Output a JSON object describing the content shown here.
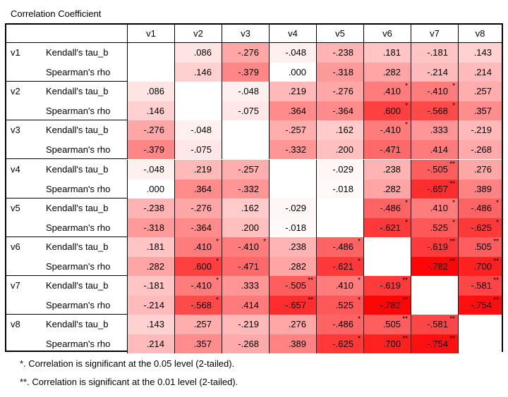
{
  "title": "Correlation Coefficient",
  "columns": [
    "v1",
    "v2",
    "v3",
    "v4",
    "v5",
    "v6",
    "v7",
    "v8"
  ],
  "rows": [
    {
      "var": "v1",
      "kendall": [
        "",
        ".086",
        "-.276",
        "-.048",
        "-.238",
        ".181",
        "-.181",
        ".143"
      ],
      "spearman": [
        "",
        ".146",
        "-.379",
        ".000",
        "-.318",
        ".282",
        "-.214",
        ".214"
      ],
      "ksig": [
        "",
        "",
        "",
        "",
        "",
        "",
        "",
        ""
      ],
      "ssig": [
        "",
        "",
        "",
        "",
        "",
        "",
        "",
        ""
      ]
    },
    {
      "var": "v2",
      "kendall": [
        ".086",
        "",
        "-.048",
        ".219",
        "-.276",
        ".410",
        "-.410",
        ".257"
      ],
      "spearman": [
        ".146",
        "",
        "-.075",
        ".364",
        "-.364",
        ".600",
        "-.568",
        ".357"
      ],
      "ksig": [
        "",
        "",
        "",
        "",
        "",
        "*",
        "*",
        ""
      ],
      "ssig": [
        "",
        "",
        "",
        "",
        "",
        "*",
        "*",
        ""
      ]
    },
    {
      "var": "v3",
      "kendall": [
        "-.276",
        "-.048",
        "",
        "-.257",
        ".162",
        "-.410",
        ".333",
        "-.219"
      ],
      "spearman": [
        "-.379",
        "-.075",
        "",
        "-.332",
        ".200",
        "-.471",
        ".414",
        "-.268"
      ],
      "ksig": [
        "",
        "",
        "",
        "",
        "",
        "*",
        "",
        ""
      ],
      "ssig": [
        "",
        "",
        "",
        "",
        "",
        "",
        "",
        ""
      ]
    },
    {
      "var": "v4",
      "kendall": [
        "-.048",
        ".219",
        "-.257",
        "",
        "-.029",
        ".238",
        "-.505",
        ".276"
      ],
      "spearman": [
        ".000",
        ".364",
        "-.332",
        "",
        "-.018",
        ".282",
        "-.657",
        ".389"
      ],
      "ksig": [
        "",
        "",
        "",
        "",
        "",
        "",
        "**",
        ""
      ],
      "ssig": [
        "",
        "",
        "",
        "",
        "",
        "",
        "**",
        ""
      ]
    },
    {
      "var": "v5",
      "kendall": [
        "-.238",
        "-.276",
        ".162",
        "-.029",
        "",
        "-.486",
        ".410",
        "-.486"
      ],
      "spearman": [
        "-.318",
        "-.364",
        ".200",
        "-.018",
        "",
        "-.621",
        ".525",
        "-.625"
      ],
      "ksig": [
        "",
        "",
        "",
        "",
        "",
        "*",
        "*",
        "*"
      ],
      "ssig": [
        "",
        "",
        "",
        "",
        "",
        "*",
        "*",
        "*"
      ]
    },
    {
      "var": "v6",
      "kendall": [
        ".181",
        ".410",
        "-.410",
        ".238",
        "-.486",
        "",
        "-.619",
        ".505"
      ],
      "spearman": [
        ".282",
        ".600",
        "-.471",
        ".282",
        "-.621",
        "",
        "-.782",
        ".700"
      ],
      "ksig": [
        "",
        "*",
        "*",
        "",
        "*",
        "",
        "**",
        "**"
      ],
      "ssig": [
        "",
        "*",
        "",
        "",
        "*",
        "",
        "**",
        "**"
      ]
    },
    {
      "var": "v7",
      "kendall": [
        "-.181",
        "-.410",
        ".333",
        "-.505",
        ".410",
        "-.619",
        "",
        "-.581"
      ],
      "spearman": [
        "-.214",
        "-.568",
        ".414",
        "-.657",
        ".525",
        "-.782",
        "",
        "-.754"
      ],
      "ksig": [
        "",
        "*",
        "",
        "**",
        "*",
        "**",
        "",
        "**"
      ],
      "ssig": [
        "",
        "*",
        "",
        "**",
        "*",
        "**",
        "",
        "**"
      ]
    },
    {
      "var": "v8",
      "kendall": [
        ".143",
        ".257",
        "-.219",
        ".276",
        "-.486",
        ".505",
        "-.581",
        ""
      ],
      "spearman": [
        ".214",
        ".357",
        "-.268",
        ".389",
        "-.625",
        ".700",
        "-.754",
        ""
      ],
      "ksig": [
        "",
        "",
        "",
        "",
        "*",
        "**",
        "**",
        ""
      ],
      "ssig": [
        "",
        "",
        "",
        "",
        "*",
        "**",
        "**",
        ""
      ]
    }
  ],
  "stat_labels": {
    "kendall": "Kendall's tau_b",
    "spearman": "Spearman's rho"
  },
  "notes": [
    "*. Correlation is significant at the 0.05 level (2-tailed).",
    "**. Correlation is significant at the 0.01 level (2-tailed)."
  ]
}
